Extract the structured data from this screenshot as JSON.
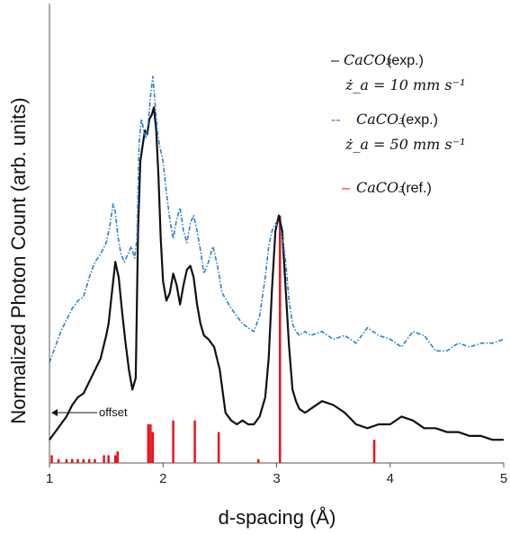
{
  "chart_data": {
    "type": "line",
    "xlabel": "d-spacing (Å)",
    "ylabel": "Normalized Photon Count (arb. units)",
    "xlim": [
      1,
      5
    ],
    "x_ticks": [
      "1",
      "2",
      "3",
      "4",
      "5"
    ],
    "grid": false,
    "legend_position": "top-right",
    "annotation": "offset",
    "legend": [
      {
        "dash": "–",
        "formula": "CaCO₃",
        "text": "(exp.)",
        "rate": "ż_a = 10 mm s⁻¹",
        "color": "#111111"
      },
      {
        "dash": "--",
        "formula": "CaCO₃",
        "text": " (exp.)",
        "rate": "ż_a = 50 mm s⁻¹",
        "color": "#2a7fd0"
      },
      {
        "dash": "–",
        "formula": "CaCO₃",
        "text": " (ref.)",
        "rate": "",
        "color": "#e8141c"
      }
    ],
    "series": [
      {
        "id": "exp10",
        "color": "#111111",
        "style": "solid",
        "x": [
          1.0,
          1.05,
          1.1,
          1.15,
          1.2,
          1.25,
          1.3,
          1.35,
          1.4,
          1.45,
          1.5,
          1.52,
          1.55,
          1.58,
          1.61,
          1.64,
          1.67,
          1.7,
          1.73,
          1.76,
          1.78,
          1.8,
          1.82,
          1.84,
          1.86,
          1.88,
          1.9,
          1.92,
          1.94,
          1.96,
          1.98,
          2.0,
          2.03,
          2.06,
          2.09,
          2.12,
          2.15,
          2.18,
          2.21,
          2.24,
          2.27,
          2.3,
          2.33,
          2.36,
          2.4,
          2.45,
          2.5,
          2.55,
          2.6,
          2.65,
          2.7,
          2.75,
          2.8,
          2.85,
          2.9,
          2.93,
          2.96,
          2.99,
          3.02,
          3.05,
          3.08,
          3.11,
          3.14,
          3.17,
          3.2,
          3.25,
          3.3,
          3.4,
          3.5,
          3.6,
          3.7,
          3.8,
          3.9,
          4.0,
          4.1,
          4.2,
          4.3,
          4.4,
          4.5,
          4.6,
          4.7,
          4.8,
          4.9,
          5.0
        ],
        "y": [
          0.06,
          0.08,
          0.1,
          0.12,
          0.15,
          0.17,
          0.18,
          0.21,
          0.24,
          0.27,
          0.33,
          0.36,
          0.44,
          0.52,
          0.48,
          0.39,
          0.31,
          0.24,
          0.19,
          0.22,
          0.6,
          0.78,
          0.82,
          0.86,
          0.85,
          0.89,
          0.9,
          0.92,
          0.86,
          0.74,
          0.58,
          0.47,
          0.42,
          0.44,
          0.49,
          0.46,
          0.41,
          0.46,
          0.5,
          0.51,
          0.48,
          0.41,
          0.36,
          0.33,
          0.32,
          0.3,
          0.24,
          0.13,
          0.11,
          0.1,
          0.11,
          0.1,
          0.1,
          0.12,
          0.17,
          0.27,
          0.45,
          0.6,
          0.64,
          0.6,
          0.45,
          0.3,
          0.19,
          0.16,
          0.14,
          0.13,
          0.14,
          0.16,
          0.15,
          0.13,
          0.1,
          0.09,
          0.1,
          0.1,
          0.12,
          0.11,
          0.09,
          0.09,
          0.08,
          0.08,
          0.07,
          0.07,
          0.06,
          0.06
        ]
      },
      {
        "id": "exp50",
        "color": "#2a7fd0",
        "style": "dashdot",
        "x": [
          1.0,
          1.05,
          1.1,
          1.15,
          1.2,
          1.25,
          1.3,
          1.35,
          1.4,
          1.45,
          1.5,
          1.53,
          1.56,
          1.58,
          1.6,
          1.63,
          1.66,
          1.69,
          1.72,
          1.75,
          1.77,
          1.79,
          1.81,
          1.83,
          1.85,
          1.87,
          1.89,
          1.91,
          1.93,
          1.95,
          1.97,
          2.0,
          2.03,
          2.06,
          2.09,
          2.12,
          2.15,
          2.18,
          2.21,
          2.24,
          2.27,
          2.3,
          2.33,
          2.36,
          2.4,
          2.44,
          2.48,
          2.52,
          2.56,
          2.6,
          2.65,
          2.7,
          2.75,
          2.8,
          2.85,
          2.9,
          2.93,
          2.96,
          2.99,
          3.02,
          3.05,
          3.08,
          3.11,
          3.14,
          3.17,
          3.2,
          3.25,
          3.3,
          3.4,
          3.5,
          3.6,
          3.7,
          3.8,
          3.9,
          4.0,
          4.1,
          4.2,
          4.3,
          4.4,
          4.5,
          4.6,
          4.7,
          4.8,
          4.9,
          5.0
        ],
        "y": [
          0.26,
          0.3,
          0.34,
          0.37,
          0.4,
          0.42,
          0.43,
          0.48,
          0.52,
          0.54,
          0.57,
          0.61,
          0.67,
          0.65,
          0.59,
          0.54,
          0.52,
          0.54,
          0.56,
          0.53,
          0.58,
          0.83,
          0.89,
          0.86,
          0.84,
          0.88,
          0.95,
          1.0,
          0.93,
          0.86,
          0.82,
          0.78,
          0.7,
          0.63,
          0.58,
          0.63,
          0.66,
          0.6,
          0.57,
          0.62,
          0.64,
          0.6,
          0.55,
          0.49,
          0.52,
          0.56,
          0.51,
          0.44,
          0.42,
          0.4,
          0.38,
          0.36,
          0.35,
          0.34,
          0.38,
          0.48,
          0.56,
          0.6,
          0.62,
          0.61,
          0.59,
          0.52,
          0.42,
          0.36,
          0.34,
          0.33,
          0.34,
          0.33,
          0.34,
          0.32,
          0.33,
          0.31,
          0.35,
          0.33,
          0.32,
          0.3,
          0.34,
          0.33,
          0.29,
          0.29,
          0.31,
          0.3,
          0.31,
          0.31,
          0.32
        ]
      }
    ],
    "reference_bars": {
      "color": "#e8141c",
      "x": [
        1.02,
        1.08,
        1.15,
        1.2,
        1.25,
        1.3,
        1.35,
        1.4,
        1.48,
        1.52,
        1.58,
        1.6,
        1.87,
        1.89,
        1.91,
        2.09,
        2.28,
        2.49,
        2.84,
        3.03,
        3.86
      ],
      "y": [
        0.02,
        0.01,
        0.01,
        0.01,
        0.01,
        0.01,
        0.01,
        0.01,
        0.02,
        0.02,
        0.02,
        0.03,
        0.1,
        0.1,
        0.08,
        0.11,
        0.11,
        0.08,
        0.01,
        0.64,
        0.06
      ]
    }
  }
}
